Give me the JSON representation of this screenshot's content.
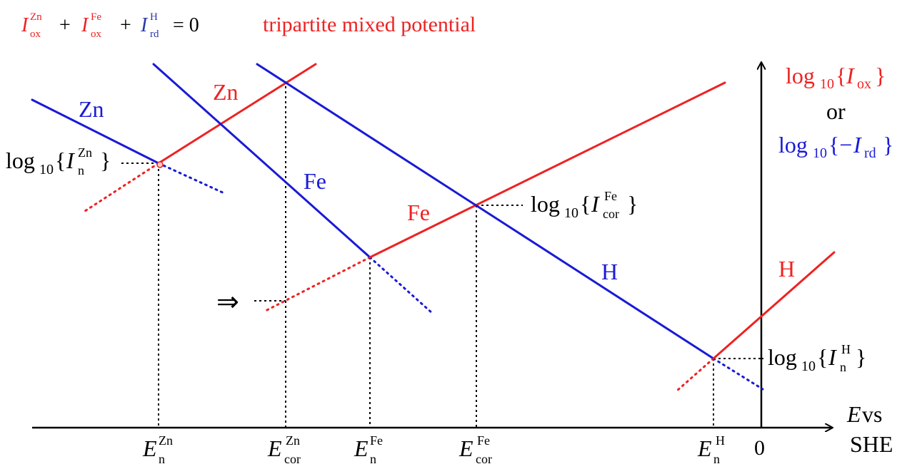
{
  "header": {
    "equation": {
      "zn_base": "I",
      "zn_sup": "Zn",
      "zn_sub": "ox",
      "plus1": "+",
      "fe_base": "I",
      "fe_sup": "Fe",
      "fe_sub": "ox",
      "plus2": "+",
      "h_base": "I",
      "h_sup": "H",
      "h_sub": "rd",
      "equals": "= 0"
    },
    "title": "tripartite mixed potential"
  },
  "y_axis": {
    "label_ox": {
      "log": "log",
      "sub": "10",
      "open": "{",
      "var": "I",
      "var_sub": "ox",
      "close": "}"
    },
    "or": "or",
    "label_rd": {
      "log": "log",
      "sub": "10",
      "open": "{−",
      "var": "I",
      "var_sub": "rd",
      "close": "}"
    }
  },
  "x_axis": {
    "label_line1_E": "E",
    "label_line1_vs": " vs",
    "label_line2": "SHE",
    "zero": "0"
  },
  "curve_labels": {
    "zn_reduction": "Zn",
    "zn_oxidation": "Zn",
    "fe_reduction": "Fe",
    "fe_oxidation": "Fe",
    "h_reduction": "H",
    "h_oxidation": "H"
  },
  "log_labels": {
    "i_n_zn": {
      "log": "log",
      "sub": "10",
      "open": "{",
      "var": "I",
      "var_sub": "n",
      "var_sup": "Zn",
      "close": "}"
    },
    "i_cor_fe": {
      "log": "log",
      "sub": "10",
      "open": "{",
      "var": "I",
      "var_sub": "cor",
      "var_sup": "Fe",
      "close": "}"
    },
    "i_n_h": {
      "log": "log",
      "sub": "10",
      "open": "{",
      "var": "I",
      "var_sub": "n",
      "var_sup": "H",
      "close": "}"
    }
  },
  "arrow_symbol": "⇒",
  "potentials": [
    {
      "base": "E",
      "sub": "n",
      "sup": "Zn"
    },
    {
      "base": "E",
      "sub": "cor",
      "sup": "Zn"
    },
    {
      "base": "E",
      "sub": "n",
      "sup": "Fe"
    },
    {
      "base": "E",
      "sub": "cor",
      "sup": "Fe"
    },
    {
      "base": "E",
      "sub": "n",
      "sup": "H"
    }
  ],
  "colors": {
    "oxidation": "#ee2222",
    "reduction": "#1a1ad6",
    "axis": "#000000",
    "text": "#000000"
  }
}
